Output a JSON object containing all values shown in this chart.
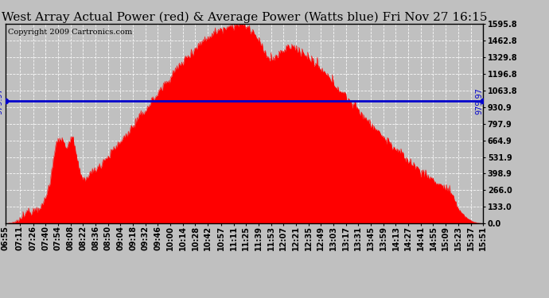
{
  "title": "West Array Actual Power (red) & Average Power (Watts blue) Fri Nov 27 16:15",
  "copyright": "Copyright 2009 Cartronics.com",
  "ymin": 0.0,
  "ymax": 1595.8,
  "yticks": [
    0.0,
    133.0,
    266.0,
    398.9,
    531.9,
    664.9,
    797.9,
    930.9,
    1063.8,
    1196.8,
    1329.8,
    1462.8,
    1595.8
  ],
  "average_power": 979.97,
  "avg_label": "979.97",
  "bg_color": "#c0c0c0",
  "plot_bg_color": "#c0c0c0",
  "fill_color": "#ff0000",
  "line_color": "#0000cc",
  "title_fontsize": 11,
  "tick_fontsize": 7,
  "copyright_fontsize": 7,
  "x_tick_labels": [
    "06:55",
    "07:11",
    "07:26",
    "07:40",
    "07:54",
    "08:08",
    "08:22",
    "08:36",
    "08:50",
    "09:04",
    "09:18",
    "09:32",
    "09:46",
    "10:00",
    "10:14",
    "10:28",
    "10:42",
    "10:57",
    "11:11",
    "11:25",
    "11:39",
    "11:53",
    "12:07",
    "12:21",
    "12:35",
    "12:49",
    "13:03",
    "13:17",
    "13:31",
    "13:45",
    "13:59",
    "14:13",
    "14:27",
    "14:41",
    "14:55",
    "15:09",
    "15:23",
    "15:37",
    "15:51"
  ]
}
